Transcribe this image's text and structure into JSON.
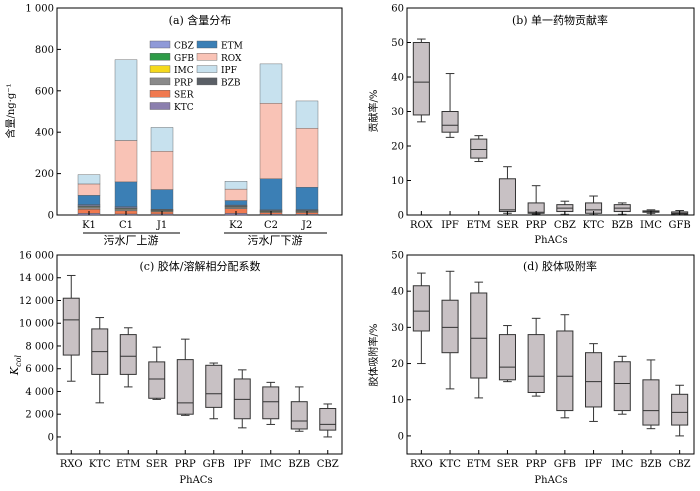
{
  "colors": {
    "CBZ": "#8f9ad8",
    "GFB": "#2e9b48",
    "IMC": "#f5d91c",
    "PRP": "#8a8a8a",
    "SER": "#f07a50",
    "KTC": "#8b7fae",
    "ETM": "#3b7fb5",
    "ROX": "#f9c3b6",
    "IPF": "#c7e1ee",
    "BZB": "#5a5f66",
    "box_fill": "#c8c1c4",
    "box_stroke": "#333333"
  },
  "chart_data": [
    {
      "type": "bar",
      "stacked": true,
      "title": "(a) 含量分布",
      "ylabel": "含量/ng·g⁻¹",
      "ylim": [
        0,
        1000
      ],
      "yticks": [
        "0",
        "200",
        "400",
        "600",
        "800",
        "1 000"
      ],
      "categories": [
        "K1",
        "C1",
        "J1",
        "K2",
        "C2",
        "J2"
      ],
      "group_labels": [
        "污水厂上游",
        "污水厂下游"
      ],
      "legend_col1": [
        "CBZ",
        "GFB",
        "IMC",
        "PRP",
        "SER",
        "KTC"
      ],
      "legend_col2": [
        "ETM",
        "ROX",
        "IPF",
        "BZB"
      ],
      "stack_order": [
        "KTC",
        "SER",
        "PRP",
        "IMC",
        "GFB",
        "CBZ",
        "BZB",
        "ETM",
        "ROX",
        "IPF"
      ],
      "series": [
        {
          "name": "KTC",
          "values": [
            8,
            5,
            5,
            8,
            4,
            4
          ]
        },
        {
          "name": "SER",
          "values": [
            20,
            15,
            10,
            22,
            8,
            8
          ]
        },
        {
          "name": "PRP",
          "values": [
            10,
            8,
            5,
            8,
            5,
            6
          ]
        },
        {
          "name": "IMC",
          "values": [
            2,
            2,
            1,
            2,
            1,
            1
          ]
        },
        {
          "name": "GFB",
          "values": [
            3,
            3,
            2,
            2,
            2,
            2
          ]
        },
        {
          "name": "CBZ",
          "values": [
            5,
            4,
            3,
            4,
            3,
            3
          ]
        },
        {
          "name": "BZB",
          "values": [
            2,
            3,
            2,
            2,
            2,
            2
          ]
        },
        {
          "name": "ETM",
          "values": [
            45,
            120,
            95,
            22,
            150,
            108
          ]
        },
        {
          "name": "ROX",
          "values": [
            55,
            200,
            185,
            55,
            365,
            285
          ]
        },
        {
          "name": "IPF",
          "values": [
            45,
            390,
            115,
            38,
            190,
            132
          ]
        }
      ]
    },
    {
      "type": "box",
      "title": "(b) 单一药物贡献率",
      "ylabel": "贡献率/%",
      "xlabel": "PhACs",
      "ylim": [
        0,
        60
      ],
      "yticks": [
        "0",
        "10",
        "20",
        "30",
        "40",
        "50",
        "60"
      ],
      "categories": [
        "ROX",
        "IPF",
        "ETM",
        "SER",
        "PRP",
        "CBZ",
        "KTC",
        "BZB",
        "IMC",
        "GFB"
      ],
      "boxes": [
        {
          "min": 27,
          "q1": 29,
          "median": 38.5,
          "q3": 50,
          "max": 51
        },
        {
          "min": 22.5,
          "q1": 24,
          "median": 26,
          "q3": 30,
          "max": 41
        },
        {
          "min": 15.5,
          "q1": 16.5,
          "median": 19,
          "q3": 22,
          "max": 23
        },
        {
          "min": 0.5,
          "q1": 1,
          "median": 1.5,
          "q3": 10.5,
          "max": 14
        },
        {
          "min": 0.3,
          "q1": 0.5,
          "median": 0.8,
          "q3": 3.5,
          "max": 8.5
        },
        {
          "min": 0.2,
          "q1": 1,
          "median": 2,
          "q3": 3,
          "max": 4
        },
        {
          "min": 0.1,
          "q1": 0.5,
          "median": 1.5,
          "q3": 3.5,
          "max": 5.5
        },
        {
          "min": 0.2,
          "q1": 1,
          "median": 2,
          "q3": 3,
          "max": 3.5
        },
        {
          "min": 0.5,
          "q1": 0.8,
          "median": 1,
          "q3": 1.2,
          "max": 1.5
        },
        {
          "min": 0.1,
          "q1": 0.3,
          "median": 0.5,
          "q3": 0.9,
          "max": 1.3
        }
      ]
    },
    {
      "type": "box",
      "title": "(c) 胶体/溶解相分配系数",
      "ylabel": "K",
      "ylabel_sub": "col",
      "xlabel": "PhACs",
      "ylim": [
        -1500,
        16000
      ],
      "yticks": [
        "0",
        "2 000",
        "4 000",
        "6 000",
        "8 000",
        "10 000",
        "12 000",
        "14 000",
        "16 000"
      ],
      "ytick_values": [
        0,
        2000,
        4000,
        6000,
        8000,
        10000,
        12000,
        14000,
        16000
      ],
      "categories": [
        "RXO",
        "KTC",
        "ETM",
        "SER",
        "PRP",
        "GFB",
        "IPF",
        "IMC",
        "BZB",
        "CBZ"
      ],
      "boxes": [
        {
          "min": 4900,
          "q1": 7200,
          "median": 10300,
          "q3": 12200,
          "max": 14200
        },
        {
          "min": 3000,
          "q1": 5500,
          "median": 7500,
          "q3": 9500,
          "max": 10500
        },
        {
          "min": 4400,
          "q1": 5500,
          "median": 7100,
          "q3": 9000,
          "max": 9600
        },
        {
          "min": 3300,
          "q1": 3400,
          "median": 5100,
          "q3": 6600,
          "max": 7900
        },
        {
          "min": 1900,
          "q1": 2000,
          "median": 3000,
          "q3": 6800,
          "max": 8600
        },
        {
          "min": 1600,
          "q1": 2600,
          "median": 3800,
          "q3": 6300,
          "max": 6500
        },
        {
          "min": 800,
          "q1": 1600,
          "median": 3300,
          "q3": 5100,
          "max": 5900
        },
        {
          "min": 1100,
          "q1": 1600,
          "median": 3100,
          "q3": 4400,
          "max": 4800
        },
        {
          "min": 500,
          "q1": 700,
          "median": 1400,
          "q3": 3100,
          "max": 4400
        },
        {
          "min": 0,
          "q1": 600,
          "median": 1100,
          "q3": 2500,
          "max": 2900
        }
      ]
    },
    {
      "type": "box",
      "title": "(d) 胶体吸附率",
      "ylabel": "胶体吸附率/%",
      "xlabel": "PhACs",
      "ylim": [
        -5,
        50
      ],
      "yticks": [
        "0",
        "10",
        "20",
        "30",
        "40",
        "50"
      ],
      "ytick_values": [
        0,
        10,
        20,
        30,
        40,
        50
      ],
      "categories": [
        "RXO",
        "KTC",
        "ETM",
        "SER",
        "PRP",
        "GFB",
        "IPF",
        "IMC",
        "BZB",
        "CBZ"
      ],
      "boxes": [
        {
          "min": 20,
          "q1": 29,
          "median": 34.5,
          "q3": 41.5,
          "max": 45
        },
        {
          "min": 13,
          "q1": 23,
          "median": 30,
          "q3": 37.5,
          "max": 45.5
        },
        {
          "min": 10.5,
          "q1": 16,
          "median": 27,
          "q3": 39.5,
          "max": 42.5
        },
        {
          "min": 15,
          "q1": 15.5,
          "median": 19,
          "q3": 28,
          "max": 30.5
        },
        {
          "min": 11,
          "q1": 12,
          "median": 16.5,
          "q3": 28,
          "max": 32.5
        },
        {
          "min": 5,
          "q1": 7,
          "median": 16.5,
          "q3": 29,
          "max": 33.5
        },
        {
          "min": 4,
          "q1": 8,
          "median": 15,
          "q3": 23,
          "max": 25.5
        },
        {
          "min": 6,
          "q1": 7,
          "median": 14.5,
          "q3": 20.5,
          "max": 22
        },
        {
          "min": 2,
          "q1": 3,
          "median": 7,
          "q3": 15.5,
          "max": 21
        },
        {
          "min": 0,
          "q1": 3,
          "median": 6.5,
          "q3": 11.5,
          "max": 14
        }
      ]
    }
  ]
}
